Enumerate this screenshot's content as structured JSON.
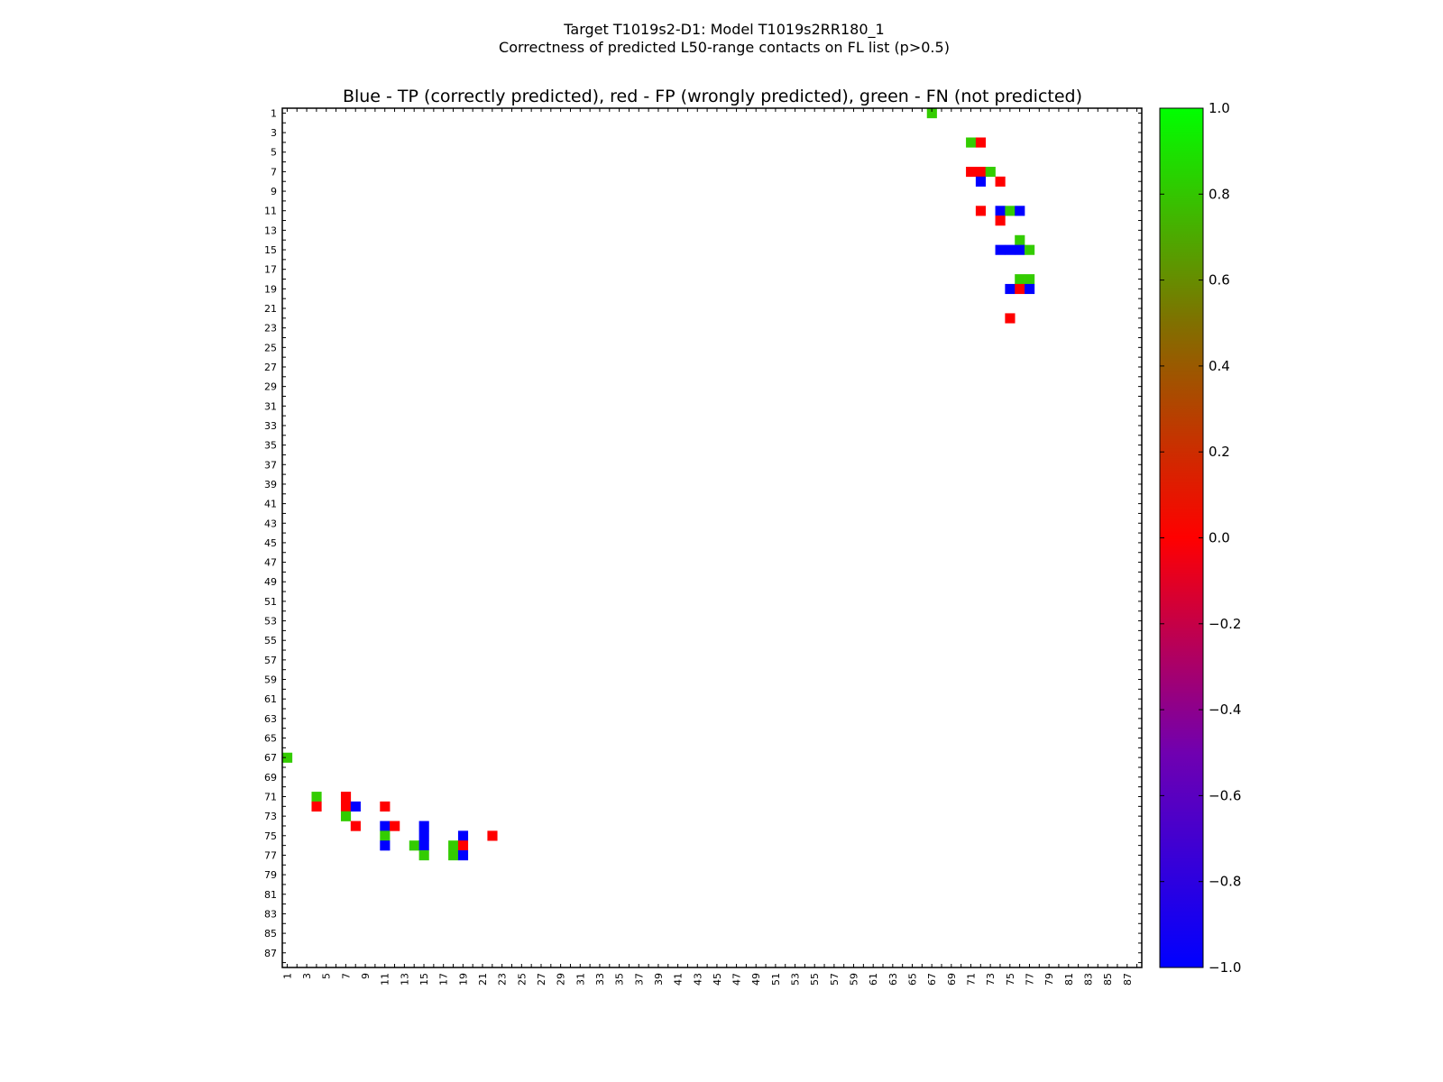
{
  "chart_data": {
    "type": "heatmap",
    "suptitle_line1": "Target T1019s2-D1: Model T1019s2RR180_1",
    "suptitle_line2": "Correctness of predicted L50-range contacts on FL list (p>0.5)",
    "title": "Blue - TP (correctly predicted), red - FP (wrongly predicted), green - FN (not predicted)",
    "size": 88,
    "xlim": [
      1,
      88
    ],
    "ylim": [
      1,
      88
    ],
    "tick_labels": [
      1,
      3,
      5,
      7,
      9,
      11,
      13,
      15,
      17,
      19,
      21,
      23,
      25,
      27,
      29,
      31,
      33,
      35,
      37,
      39,
      41,
      43,
      45,
      47,
      49,
      51,
      53,
      55,
      57,
      59,
      61,
      63,
      65,
      67,
      69,
      71,
      73,
      75,
      77,
      79,
      81,
      83,
      85,
      87
    ],
    "symmetric": true,
    "cells_upper": [
      {
        "row": 1,
        "col": 67,
        "value": 0.8
      },
      {
        "row": 4,
        "col": 71,
        "value": 0.8
      },
      {
        "row": 4,
        "col": 72,
        "value": 0
      },
      {
        "row": 7,
        "col": 71,
        "value": 0
      },
      {
        "row": 7,
        "col": 72,
        "value": 0
      },
      {
        "row": 7,
        "col": 73,
        "value": 0.8
      },
      {
        "row": 8,
        "col": 72,
        "value": -1
      },
      {
        "row": 8,
        "col": 74,
        "value": 0
      },
      {
        "row": 11,
        "col": 72,
        "value": 0
      },
      {
        "row": 11,
        "col": 74,
        "value": -1
      },
      {
        "row": 11,
        "col": 75,
        "value": 0.8
      },
      {
        "row": 11,
        "col": 76,
        "value": -1
      },
      {
        "row": 12,
        "col": 74,
        "value": 0
      },
      {
        "row": 14,
        "col": 76,
        "value": 0.8
      },
      {
        "row": 15,
        "col": 74,
        "value": -1
      },
      {
        "row": 15,
        "col": 75,
        "value": -1
      },
      {
        "row": 15,
        "col": 76,
        "value": -1
      },
      {
        "row": 15,
        "col": 77,
        "value": 0.8
      },
      {
        "row": 18,
        "col": 76,
        "value": 0.8
      },
      {
        "row": 18,
        "col": 77,
        "value": 0.8
      },
      {
        "row": 19,
        "col": 75,
        "value": -1
      },
      {
        "row": 19,
        "col": 76,
        "value": 0
      },
      {
        "row": 19,
        "col": 77,
        "value": -1
      },
      {
        "row": 22,
        "col": 75,
        "value": 0
      }
    ],
    "colorbar": {
      "range": [
        -1.0,
        1.0
      ],
      "tick_labels": [
        "1.0",
        "0.8",
        "0.6",
        "0.4",
        "0.2",
        "0.0",
        "−0.2",
        "−0.4",
        "−0.6",
        "−0.8",
        "−1.0"
      ],
      "tick_values": [
        1.0,
        0.8,
        0.6,
        0.4,
        0.2,
        0.0,
        -0.2,
        -0.4,
        -0.6,
        -0.8,
        -1.0
      ]
    },
    "colors": {
      "tp": "#0000ff",
      "fp": "#ff0000",
      "fn": "#33cc00",
      "max": "#00ff00"
    }
  }
}
